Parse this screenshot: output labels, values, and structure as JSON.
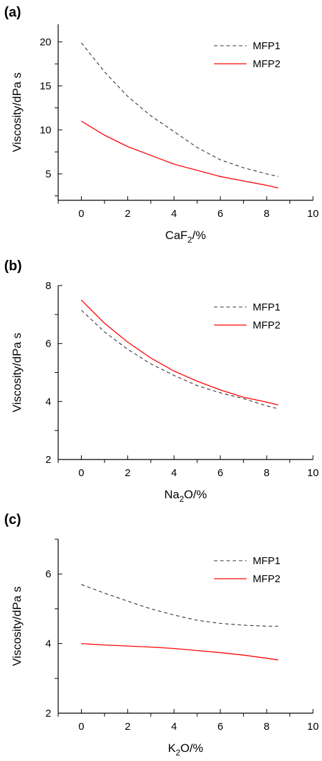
{
  "colors": {
    "MFP1": "#333333",
    "MFP2": "#ff0000"
  },
  "chart_data": [
    {
      "type": "line",
      "panel_label": "(a)",
      "xlabel": {
        "main": "CaF",
        "sub": "2",
        "tail": "/%"
      },
      "ylabel": "Viscosity/dPa s",
      "xlim": [
        -1,
        10
      ],
      "ylim": [
        2,
        22
      ],
      "xticks": [
        0,
        2,
        4,
        6,
        8,
        10
      ],
      "yticks": [
        5,
        10,
        15,
        20
      ],
      "minor_xticks": [
        -1,
        1,
        3,
        5,
        7,
        9
      ],
      "minor_yticks": [
        2.5,
        7.5,
        12.5,
        17.5
      ],
      "grid": false,
      "legend_position": "top-right",
      "series": [
        {
          "name": "MFP1",
          "style": "dashed",
          "x": [
            0,
            1,
            2,
            3,
            4,
            5,
            6,
            7,
            8,
            8.5
          ],
          "y": [
            19.9,
            16.6,
            13.8,
            11.6,
            9.8,
            8.0,
            6.6,
            5.7,
            5.0,
            4.7
          ]
        },
        {
          "name": "MFP2",
          "style": "solid",
          "x": [
            0,
            1,
            2,
            3,
            4,
            5,
            6,
            7,
            8,
            8.5
          ],
          "y": [
            11.0,
            9.4,
            8.1,
            7.1,
            6.1,
            5.4,
            4.7,
            4.2,
            3.7,
            3.4
          ]
        }
      ]
    },
    {
      "type": "line",
      "panel_label": "(b)",
      "xlabel": {
        "main": "Na",
        "sub": "2",
        "tail": "O/%"
      },
      "ylabel": "Viscosity/dPa s",
      "xlim": [
        -1,
        10
      ],
      "ylim": [
        2,
        8
      ],
      "xticks": [
        0,
        2,
        4,
        6,
        8,
        10
      ],
      "yticks": [
        2,
        4,
        6,
        8
      ],
      "minor_xticks": [
        -1,
        1,
        3,
        5,
        7,
        9
      ],
      "minor_yticks": [
        3,
        5,
        7
      ],
      "grid": false,
      "legend_position": "top-right",
      "series": [
        {
          "name": "MFP1",
          "style": "dashed",
          "x": [
            0,
            1,
            2,
            3,
            4,
            5,
            6,
            7,
            8,
            8.5
          ],
          "y": [
            7.15,
            6.4,
            5.8,
            5.3,
            4.9,
            4.55,
            4.3,
            4.1,
            3.85,
            3.75
          ]
        },
        {
          "name": "MFP2",
          "style": "solid",
          "x": [
            0,
            1,
            2,
            3,
            4,
            5,
            6,
            7,
            8,
            8.5
          ],
          "y": [
            7.5,
            6.7,
            6.05,
            5.5,
            5.05,
            4.7,
            4.4,
            4.15,
            3.98,
            3.88
          ]
        }
      ]
    },
    {
      "type": "line",
      "panel_label": "(c)",
      "xlabel": {
        "main": "K",
        "sub": "2",
        "tail": "O/%"
      },
      "ylabel": "Viscosity/dPa s",
      "xlim": [
        -1,
        10
      ],
      "ylim": [
        2,
        7
      ],
      "xticks": [
        0,
        2,
        4,
        6,
        8,
        10
      ],
      "yticks": [
        2,
        4,
        6
      ],
      "minor_xticks": [
        -1,
        1,
        3,
        5,
        7,
        9
      ],
      "minor_yticks": [
        3,
        5,
        7
      ],
      "grid": false,
      "legend_position": "top-right",
      "series": [
        {
          "name": "MFP1",
          "style": "dashed",
          "x": [
            0,
            1,
            2,
            3,
            4,
            5,
            6,
            7,
            8,
            8.5
          ],
          "y": [
            5.7,
            5.45,
            5.22,
            5.0,
            4.82,
            4.67,
            4.58,
            4.53,
            4.5,
            4.5
          ]
        },
        {
          "name": "MFP2",
          "style": "solid",
          "x": [
            0,
            1,
            2,
            3,
            4,
            5,
            6,
            7,
            8,
            8.5
          ],
          "y": [
            4.0,
            3.96,
            3.93,
            3.9,
            3.86,
            3.8,
            3.74,
            3.67,
            3.58,
            3.53
          ]
        }
      ]
    }
  ]
}
